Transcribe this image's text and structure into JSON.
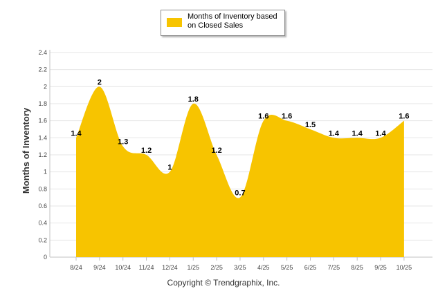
{
  "chart_data": {
    "type": "area",
    "title": "",
    "xlabel": "",
    "ylabel": "Months of Inventory",
    "ylim": [
      0,
      2.4
    ],
    "yticks": [
      "0",
      "0.2",
      "0.4",
      "0.6",
      "0.8",
      "1",
      "1.2",
      "1.4",
      "1.6",
      "1.8",
      "2",
      "2.2",
      "2.4"
    ],
    "grid": true,
    "legend_position": "top-center",
    "categories": [
      "8/24",
      "9/24",
      "10/24",
      "11/24",
      "12/24",
      "1/25",
      "2/25",
      "3/25",
      "4/25",
      "5/25",
      "6/25",
      "7/25",
      "8/25",
      "9/25",
      "10/25"
    ],
    "series": [
      {
        "name": "Months of Inventory based on Closed Sales",
        "color": "#f7c400",
        "values": [
          1.4,
          2,
          1.3,
          1.2,
          1,
          1.8,
          1.2,
          0.7,
          1.6,
          1.6,
          1.5,
          1.4,
          1.4,
          1.4,
          1.6
        ],
        "labels": [
          "1.4",
          "2",
          "1.3",
          "1.2",
          "1",
          "1.8",
          "1.2",
          "0.7",
          "1.6",
          "1.6",
          "1.5",
          "1.4",
          "1.4",
          "1.4",
          "1.6"
        ]
      }
    ]
  },
  "legend": {
    "label": "Months of Inventory based on Closed Sales"
  },
  "footer": {
    "copyright": "Copyright © Trendgraphix, Inc."
  }
}
